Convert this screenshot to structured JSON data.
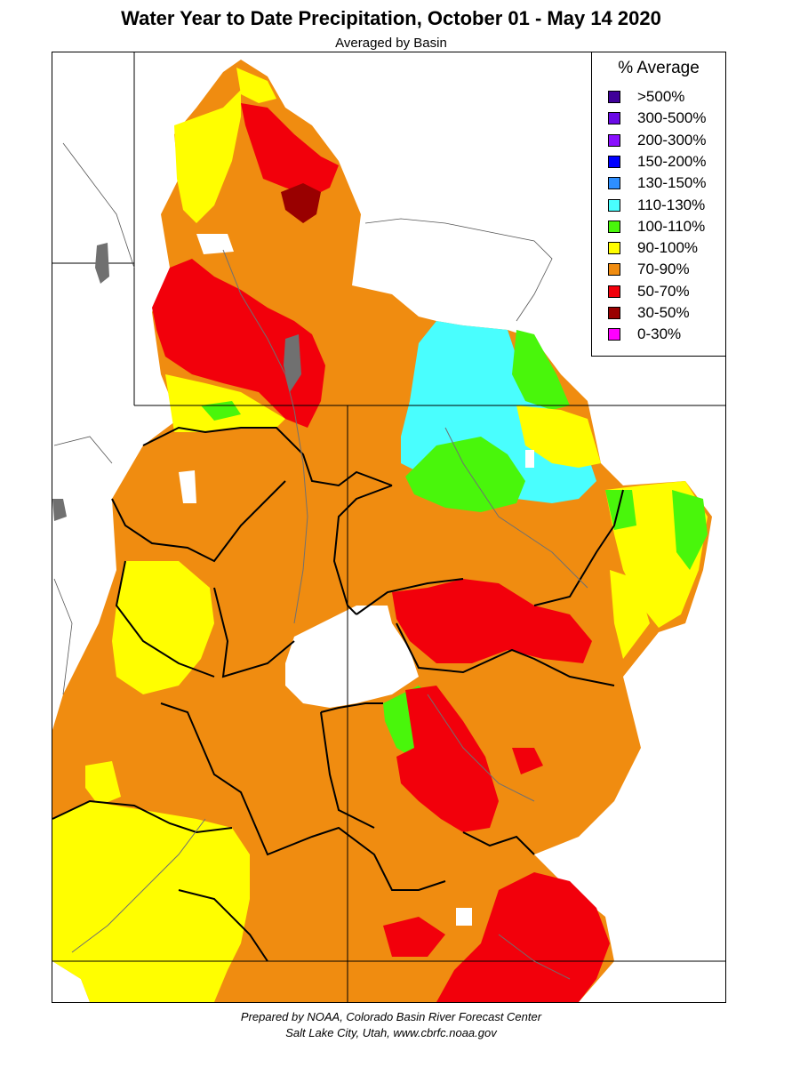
{
  "title": "Water Year to Date Precipitation, October 01  - May 14 2020",
  "subtitle": "Averaged by Basin",
  "legend": {
    "title": "% Average",
    "items": [
      {
        "label": ">500%",
        "color": "#3f0099"
      },
      {
        "label": "300-500%",
        "color": "#6a0ae6"
      },
      {
        "label": "200-300%",
        "color": "#8a10ff"
      },
      {
        "label": "150-200%",
        "color": "#0000ff"
      },
      {
        "label": "130-150%",
        "color": "#2e8fff"
      },
      {
        "label": "110-130%",
        "color": "#49fefe"
      },
      {
        "label": "100-110%",
        "color": "#49f60b"
      },
      {
        "label": "90-100%",
        "color": "#fffe00"
      },
      {
        "label": "70-90%",
        "color": "#f08c10"
      },
      {
        "label": "50-70%",
        "color": "#f2000b"
      },
      {
        "label": "30-50%",
        "color": "#990000"
      },
      {
        "label": "0-30%",
        "color": "#ff00ff"
      }
    ]
  },
  "footer": {
    "line1": "Prepared by NOAA, Colorado Basin River Forecast Center",
    "line2": "Salt Lake City, Utah, www.cbrfc.noaa.gov"
  }
}
